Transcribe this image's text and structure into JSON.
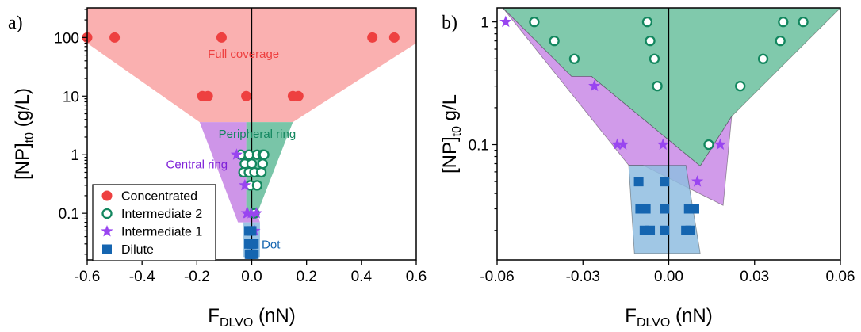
{
  "colors": {
    "concentrated": "#ee4040",
    "intermediate2": "#13875f",
    "intermediate1": "#9945f0",
    "dilute": "#1565b0",
    "full_fill": "#f9a7a7",
    "green_fill": "#6abf9e",
    "purple_fill": "#c98ae6",
    "blue_fill": "#8fbde0",
    "label_full": "#ee4040",
    "label_peripheral": "#13875f",
    "label_central": "#7f22d8",
    "label_dot": "#1565b0"
  },
  "chart_data": [
    {
      "type": "scatter",
      "panel_label": "a)",
      "xlabel": "F",
      "xlabel_sub": "DLVO",
      "xlabel_unit": " (nN)",
      "ylabel": "[NP]",
      "ylabel_sub": "t0",
      "ylabel_unit": " (g/L)",
      "x_scale": "linear",
      "y_scale": "log",
      "xlim": [
        -0.6,
        0.6
      ],
      "ylim": [
        0.016,
        320
      ],
      "xticks": [
        -0.6,
        -0.4,
        -0.2,
        0.0,
        0.2,
        0.4,
        0.6
      ],
      "xtick_labels": [
        "-0.6",
        "-0.4",
        "-0.2",
        "0.0",
        "0.2",
        "0.4",
        "0.6"
      ],
      "yticks": [
        0.1,
        1,
        10,
        100
      ],
      "ytick_labels": [
        "0.1",
        "1",
        "10",
        "100"
      ],
      "zero_line": true,
      "grid": false,
      "legend_position": "bottom-left",
      "legend": [
        {
          "name": "Concentrated",
          "marker": "circle",
          "color": "concentrated"
        },
        {
          "name": "Intermediate 2",
          "marker": "hollow-circle",
          "color": "intermediate2"
        },
        {
          "name": "Intermediate 1",
          "marker": "star",
          "color": "intermediate1"
        },
        {
          "name": "Dilute",
          "marker": "square",
          "color": "dilute"
        }
      ],
      "regions": [
        {
          "label": "Full coverage",
          "fill": "full_fill",
          "label_color": "label_full",
          "label_at": [
            -0.03,
            45
          ],
          "polygon": [
            [
              -0.6,
              320
            ],
            [
              0.6,
              320
            ],
            [
              0.6,
              80
            ],
            [
              0.15,
              3.6
            ],
            [
              -0.19,
              3.6
            ],
            [
              -0.6,
              80
            ]
          ]
        },
        {
          "label": "Peripheral ring",
          "fill": "green_fill",
          "label_color": "label_peripheral",
          "label_at": [
            0.02,
            1.95
          ],
          "polygon": [
            [
              -0.02,
              3.6
            ],
            [
              0.15,
              3.6
            ],
            [
              0.02,
              0.1
            ],
            [
              -0.02,
              0.1
            ]
          ]
        },
        {
          "label": "Central ring",
          "fill": "purple_fill",
          "label_color": "label_central",
          "label_at": [
            -0.2,
            0.58
          ],
          "polygon": [
            [
              -0.19,
              3.6
            ],
            [
              -0.02,
              3.6
            ],
            [
              -0.02,
              0.1
            ],
            [
              0.02,
              0.1
            ],
            [
              0.03,
              0.07
            ],
            [
              -0.05,
              0.07
            ]
          ]
        },
        {
          "label": "Dot",
          "fill": "blue_fill",
          "label_color": "label_dot",
          "label_at": [
            0.07,
            0.025
          ],
          "polygon": [
            [
              -0.03,
              0.07
            ],
            [
              0.03,
              0.07
            ],
            [
              0.03,
              0.018
            ],
            [
              -0.03,
              0.018
            ]
          ]
        }
      ],
      "series": [
        {
          "name": "Concentrated",
          "marker": "circle",
          "color": "concentrated",
          "points": [
            [
              -0.6,
              100
            ],
            [
              -0.5,
              100
            ],
            [
              -0.11,
              100
            ],
            [
              0.44,
              100
            ],
            [
              0.52,
              100
            ],
            [
              -0.18,
              10
            ],
            [
              -0.16,
              10
            ],
            [
              -0.02,
              10
            ],
            [
              0.15,
              10
            ],
            [
              0.17,
              10
            ]
          ]
        },
        {
          "name": "Intermediate 2",
          "marker": "hollow-circle",
          "color": "intermediate2",
          "points": [
            [
              -0.04,
              1
            ],
            [
              -0.01,
              1
            ],
            [
              0.02,
              1
            ],
            [
              0.04,
              1
            ],
            [
              0.045,
              1
            ],
            [
              -0.025,
              0.7
            ],
            [
              0.0,
              0.7
            ],
            [
              0.04,
              0.7
            ],
            [
              -0.03,
              0.5
            ],
            [
              -0.01,
              0.5
            ],
            [
              0.01,
              0.5
            ],
            [
              0.035,
              0.5
            ],
            [
              -0.005,
              0.3
            ],
            [
              0.02,
              0.3
            ],
            [
              0.01,
              0.1
            ]
          ]
        },
        {
          "name": "Intermediate 1",
          "marker": "star",
          "color": "intermediate1",
          "points": [
            [
              -0.055,
              1
            ],
            [
              -0.025,
              0.3
            ],
            [
              -0.018,
              0.1
            ],
            [
              -0.015,
              0.1
            ],
            [
              -0.002,
              0.1
            ],
            [
              0.017,
              0.1
            ],
            [
              0.01,
              0.05
            ]
          ]
        },
        {
          "name": "Dilute",
          "marker": "square",
          "color": "dilute",
          "points": [
            [
              -0.01,
              0.05
            ],
            [
              0.0,
              0.05
            ],
            [
              -0.01,
              0.03
            ],
            [
              0.0,
              0.03
            ],
            [
              0.008,
              0.03
            ],
            [
              -0.008,
              0.02
            ],
            [
              -0.004,
              0.02
            ],
            [
              0.0,
              0.02
            ],
            [
              0.008,
              0.02
            ]
          ]
        }
      ]
    },
    {
      "type": "scatter",
      "panel_label": "b)",
      "xlabel": "F",
      "xlabel_sub": "DLVO",
      "xlabel_unit": " (nN)",
      "ylabel": "[NP]",
      "ylabel_sub": "t0",
      "ylabel_unit": " g/L",
      "x_scale": "linear",
      "y_scale": "log",
      "xlim": [
        -0.06,
        0.06
      ],
      "ylim": [
        0.0115,
        1.3
      ],
      "xticks": [
        -0.06,
        -0.03,
        0.0,
        0.03,
        0.06
      ],
      "xtick_labels": [
        "-0.06",
        "-0.03",
        "0.00",
        "0.03",
        "0.06"
      ],
      "yticks": [
        0.1,
        1
      ],
      "ytick_labels": [
        "0.1",
        "1"
      ],
      "zero_line": true,
      "grid": false,
      "regions": [
        {
          "fill": "green_fill",
          "polygon": [
            [
              -0.058,
              1.3
            ],
            [
              0.06,
              1.3
            ],
            [
              0.022,
              0.17
            ],
            [
              0.011,
              0.067
            ],
            [
              -0.027,
              0.36
            ],
            [
              -0.034,
              0.36
            ]
          ]
        },
        {
          "fill": "purple_fill",
          "polygon": [
            [
              -0.058,
              1.3
            ],
            [
              -0.034,
              0.36
            ],
            [
              -0.027,
              0.36
            ],
            [
              0.011,
              0.067
            ],
            [
              0.022,
              0.17
            ],
            [
              0.019,
              0.032
            ],
            [
              -0.009,
              0.068
            ],
            [
              -0.014,
              0.068
            ]
          ]
        },
        {
          "fill": "blue_fill",
          "polygon": [
            [
              -0.014,
              0.068
            ],
            [
              0.006,
              0.068
            ],
            [
              0.011,
              0.013
            ],
            [
              -0.012,
              0.013
            ]
          ]
        }
      ],
      "series": [
        {
          "name": "Intermediate 2",
          "marker": "hollow-circle",
          "color": "intermediate2",
          "points": [
            [
              -0.047,
              1
            ],
            [
              -0.0075,
              1
            ],
            [
              0.04,
              1
            ],
            [
              0.047,
              1
            ],
            [
              -0.04,
              0.7
            ],
            [
              -0.0065,
              0.7
            ],
            [
              0.039,
              0.7
            ],
            [
              -0.033,
              0.5
            ],
            [
              -0.005,
              0.5
            ],
            [
              0.033,
              0.5
            ],
            [
              -0.004,
              0.3
            ],
            [
              0.025,
              0.3
            ],
            [
              0.014,
              0.1
            ]
          ]
        },
        {
          "name": "Intermediate 1",
          "marker": "star",
          "color": "intermediate1",
          "points": [
            [
              -0.057,
              1
            ],
            [
              -0.026,
              0.3
            ],
            [
              -0.018,
              0.1
            ],
            [
              -0.016,
              0.1
            ],
            [
              -0.002,
              0.1
            ],
            [
              0.018,
              0.1
            ],
            [
              0.01,
              0.05
            ]
          ]
        },
        {
          "name": "Dilute",
          "marker": "square",
          "color": "dilute",
          "points": [
            [
              -0.0105,
              0.05
            ],
            [
              -0.0015,
              0.05
            ],
            [
              -0.01,
              0.03
            ],
            [
              -0.008,
              0.03
            ],
            [
              -0.0015,
              0.03
            ],
            [
              0.007,
              0.03
            ],
            [
              0.009,
              0.03
            ],
            [
              -0.0085,
              0.02
            ],
            [
              -0.0065,
              0.02
            ],
            [
              -0.0015,
              0.02
            ],
            [
              0.006,
              0.02
            ],
            [
              0.0075,
              0.02
            ]
          ]
        }
      ]
    }
  ]
}
